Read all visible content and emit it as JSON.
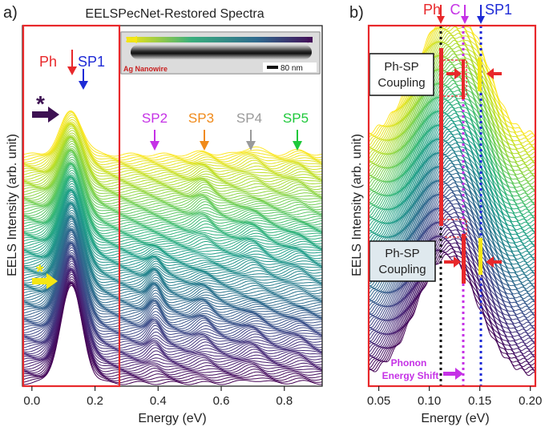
{
  "chart_data": [
    {
      "panel_label": "a)",
      "type": "line",
      "title": "EELSPecNet-Restored Spectra",
      "xlabel": "Energy (eV)",
      "ylabel": "EELS Intensity (arb. unit)",
      "xlim": [
        -0.03,
        0.92
      ],
      "x_ticks": [
        0.0,
        0.2,
        0.4,
        0.6,
        0.8
      ],
      "x_tick_labels": [
        "0.0",
        "0.2",
        "0.4",
        "0.6",
        "0.8"
      ],
      "grid": false,
      "series_count": 120,
      "colormap": "viridis",
      "stack": "waterfall",
      "peaks": [
        {
          "name": "Ph",
          "x": 0.115,
          "color": "#e8282b"
        },
        {
          "name": "SP1",
          "x": 0.15,
          "color": "#1e2ad6"
        },
        {
          "name": "SP2",
          "x": 0.39,
          "color": "#c531e6"
        },
        {
          "name": "SP3",
          "x": 0.545,
          "color": "#f08a1a"
        },
        {
          "name": "SP4",
          "x": 0.7,
          "color": "#9a9a9a"
        },
        {
          "name": "SP5",
          "x": 0.845,
          "color": "#1ec83a"
        }
      ],
      "highlight_box_x": [
        -0.03,
        0.27
      ],
      "inset": {
        "label": "Ag Nanowire",
        "scale_bar": "80 nm"
      },
      "markers": [
        {
          "symbol": "*",
          "color": "#3d1152"
        },
        {
          "symbol": "*",
          "color": "#f5e614"
        }
      ]
    },
    {
      "panel_label": "b)",
      "type": "line",
      "title": "",
      "xlabel": "Energy (eV)",
      "ylabel": "EELS Intensity (arb. unit)",
      "xlim": [
        0.04,
        0.205
      ],
      "x_ticks": [
        0.05,
        0.1,
        0.15,
        0.2
      ],
      "x_tick_labels": [
        "0.05",
        "0.10",
        "0.15",
        "0.20"
      ],
      "grid": false,
      "series_count": 110,
      "colormap": "viridis",
      "stack": "waterfall",
      "reference_lines": [
        {
          "name": "Ph",
          "x": 0.113,
          "color": "#111111"
        },
        {
          "name": "C",
          "x": 0.133,
          "color": "#c531e6"
        },
        {
          "name": "SP1",
          "x": 0.15,
          "color": "#1e2ad6"
        }
      ],
      "annotations": [
        "Ph-SP Coupling",
        "Ph-SP Coupling",
        "Phonon Energy Shift"
      ]
    }
  ],
  "text": {
    "a_panel": "a)",
    "b_panel": "b)",
    "title_a": "EELSPecNet-Restored Spectra",
    "xlabel_a": "Energy (eV)",
    "ylabel_a": "EELS Intensity (arb. unit)",
    "xlabel_b": "Energy (eV)",
    "ylabel_b": "EELS Intensity (arb. unit)",
    "ph_a": "Ph",
    "sp1_a": "SP1",
    "sp2": "SP2",
    "sp3": "SP3",
    "sp4": "SP4",
    "sp5": "SP5",
    "star": "*",
    "inset_label": "Ag Nanowire",
    "scale_bar": "80 nm",
    "ph_b": "Ph",
    "c_b": "C",
    "sp1_b": "SP1",
    "coupling_1": "Ph-SP Coupling",
    "coupling_2": "Ph-SP Coupling",
    "shift_1": "Phonon",
    "shift_2": "Energy Shift"
  },
  "colors": {
    "frame_red": "#e8282b",
    "ph": "#e8282b",
    "sp1": "#1e2ad6",
    "sp2": "#c531e6",
    "sp3": "#f08a1a",
    "sp4": "#9a9a9a",
    "sp5": "#1ec83a",
    "yellow_marker": "#f5e614",
    "purple_marker": "#3d1152"
  }
}
